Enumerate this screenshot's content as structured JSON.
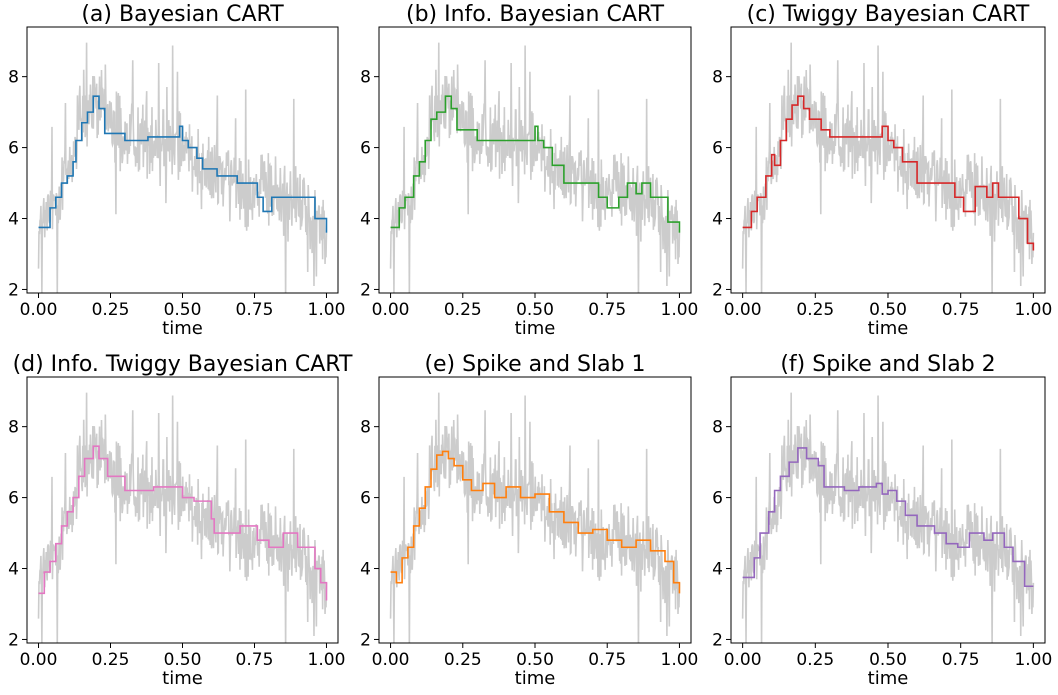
{
  "chart_data": [
    {
      "type": "line",
      "title": "(a) Bayesian CART",
      "xlabel": "time",
      "ylabel": "",
      "xlim": [
        -0.04,
        1.04
      ],
      "ylim": [
        1.9,
        9.4
      ],
      "xticks": [
        "0.00",
        "0.25",
        "0.50",
        "0.75",
        "1.00"
      ],
      "yticks": [
        "2",
        "4",
        "6",
        "8"
      ],
      "grid": false,
      "color": "#1f77b4",
      "fit": {
        "x": [
          0.0,
          0.03,
          0.04,
          0.06,
          0.08,
          0.1,
          0.12,
          0.13,
          0.15,
          0.17,
          0.19,
          0.21,
          0.23,
          0.3,
          0.38,
          0.47,
          0.49,
          0.5,
          0.52,
          0.55,
          0.57,
          0.62,
          0.69,
          0.76,
          0.78,
          0.81,
          0.92,
          0.96,
          1.0
        ],
        "y": [
          3.75,
          3.75,
          4.3,
          4.6,
          5.0,
          5.2,
          5.6,
          6.2,
          6.7,
          7.0,
          7.45,
          7.1,
          6.4,
          6.2,
          6.3,
          6.3,
          6.6,
          6.2,
          6.0,
          5.7,
          5.4,
          5.2,
          5.0,
          4.6,
          4.2,
          4.6,
          4.6,
          4.0,
          3.6
        ]
      }
    },
    {
      "type": "line",
      "title": "(b) Info. Bayesian CART",
      "xlabel": "time",
      "ylabel": "",
      "xlim": [
        -0.04,
        1.04
      ],
      "ylim": [
        1.9,
        9.4
      ],
      "xticks": [
        "0.00",
        "0.25",
        "0.50",
        "0.75",
        "1.00"
      ],
      "yticks": [
        "2",
        "4",
        "6",
        "8"
      ],
      "grid": false,
      "color": "#2ca02c",
      "fit": {
        "x": [
          0.0,
          0.03,
          0.05,
          0.08,
          0.1,
          0.12,
          0.14,
          0.16,
          0.19,
          0.21,
          0.23,
          0.3,
          0.45,
          0.5,
          0.51,
          0.53,
          0.56,
          0.6,
          0.66,
          0.72,
          0.75,
          0.79,
          0.82,
          0.85,
          0.87,
          0.9,
          0.96,
          1.0
        ],
        "y": [
          3.75,
          4.3,
          4.6,
          5.2,
          5.6,
          6.2,
          6.8,
          7.0,
          7.45,
          7.1,
          6.5,
          6.2,
          6.2,
          6.6,
          6.2,
          6.0,
          5.5,
          5.0,
          5.0,
          4.6,
          4.3,
          4.6,
          5.0,
          4.7,
          5.0,
          4.6,
          3.9,
          3.6
        ]
      }
    },
    {
      "type": "line",
      "title": "(c) Twiggy Bayesian CART",
      "xlabel": "time",
      "ylabel": "",
      "xlim": [
        -0.04,
        1.04
      ],
      "ylim": [
        1.9,
        9.4
      ],
      "xticks": [
        "0.00",
        "0.25",
        "0.50",
        "0.75",
        "1.00"
      ],
      "yticks": [
        "2",
        "4",
        "6",
        "8"
      ],
      "grid": false,
      "color": "#d62728",
      "fit": {
        "x": [
          0.0,
          0.03,
          0.05,
          0.08,
          0.1,
          0.11,
          0.13,
          0.15,
          0.17,
          0.19,
          0.21,
          0.23,
          0.27,
          0.3,
          0.45,
          0.48,
          0.5,
          0.52,
          0.55,
          0.6,
          0.67,
          0.73,
          0.76,
          0.8,
          0.84,
          0.86,
          0.88,
          0.95,
          0.98,
          1.0
        ],
        "y": [
          3.75,
          4.2,
          4.6,
          5.2,
          5.8,
          5.5,
          6.2,
          6.8,
          7.2,
          7.45,
          7.1,
          6.8,
          6.5,
          6.3,
          6.3,
          6.6,
          6.2,
          6.0,
          5.6,
          5.0,
          5.0,
          4.6,
          4.2,
          4.9,
          4.6,
          5.0,
          4.6,
          4.0,
          3.3,
          3.1
        ]
      }
    },
    {
      "type": "line",
      "title": "(d) Info. Twiggy Bayesian CART",
      "xlabel": "time",
      "ylabel": "",
      "xlim": [
        -0.04,
        1.04
      ],
      "ylim": [
        1.9,
        9.4
      ],
      "xticks": [
        "0.00",
        "0.25",
        "0.50",
        "0.75",
        "1.00"
      ],
      "yticks": [
        "2",
        "4",
        "6",
        "8"
      ],
      "grid": false,
      "color": "#e377c2",
      "fit": {
        "x": [
          0.0,
          0.02,
          0.04,
          0.06,
          0.08,
          0.1,
          0.12,
          0.14,
          0.16,
          0.19,
          0.21,
          0.24,
          0.3,
          0.4,
          0.5,
          0.54,
          0.6,
          0.61,
          0.7,
          0.76,
          0.8,
          0.85,
          0.9,
          0.96,
          0.98,
          1.0
        ],
        "y": [
          3.3,
          3.9,
          4.2,
          4.7,
          5.2,
          5.6,
          6.0,
          6.6,
          7.1,
          7.45,
          7.1,
          6.6,
          6.2,
          6.3,
          6.0,
          5.9,
          5.4,
          5.0,
          5.2,
          4.8,
          4.6,
          5.0,
          4.6,
          4.0,
          3.6,
          3.1
        ]
      }
    },
    {
      "type": "line",
      "title": "(e) Spike and Slab 1",
      "xlabel": "time",
      "ylabel": "",
      "xlim": [
        -0.04,
        1.04
      ],
      "ylim": [
        1.9,
        9.4
      ],
      "xticks": [
        "0.00",
        "0.25",
        "0.50",
        "0.75",
        "1.00"
      ],
      "yticks": [
        "2",
        "4",
        "6",
        "8"
      ],
      "grid": false,
      "color": "#ff7f0e",
      "fit": {
        "x": [
          0.0,
          0.02,
          0.04,
          0.06,
          0.08,
          0.1,
          0.12,
          0.14,
          0.16,
          0.18,
          0.2,
          0.22,
          0.25,
          0.28,
          0.32,
          0.36,
          0.4,
          0.45,
          0.5,
          0.55,
          0.6,
          0.65,
          0.7,
          0.75,
          0.8,
          0.85,
          0.9,
          0.95,
          0.98,
          1.0
        ],
        "y": [
          3.9,
          3.6,
          4.3,
          4.6,
          5.2,
          5.7,
          6.3,
          6.8,
          7.2,
          7.3,
          7.1,
          6.9,
          6.5,
          6.2,
          6.4,
          6.0,
          6.3,
          6.0,
          6.1,
          5.6,
          5.3,
          5.0,
          5.1,
          4.8,
          4.6,
          4.8,
          4.5,
          4.2,
          3.6,
          3.3
        ]
      }
    },
    {
      "type": "line",
      "title": "(f) Spike and Slab 2",
      "xlabel": "time",
      "ylabel": "",
      "xlim": [
        -0.04,
        1.04
      ],
      "ylim": [
        1.9,
        9.4
      ],
      "xticks": [
        "0.00",
        "0.25",
        "0.50",
        "0.75",
        "1.00"
      ],
      "yticks": [
        "2",
        "4",
        "6",
        "8"
      ],
      "grid": false,
      "color": "#9467bd",
      "fit": {
        "x": [
          0.0,
          0.04,
          0.06,
          0.09,
          0.11,
          0.13,
          0.16,
          0.19,
          0.22,
          0.26,
          0.28,
          0.35,
          0.4,
          0.46,
          0.48,
          0.5,
          0.53,
          0.56,
          0.6,
          0.66,
          0.7,
          0.74,
          0.78,
          0.83,
          0.86,
          0.9,
          0.93,
          0.97,
          1.0
        ],
        "y": [
          3.75,
          4.3,
          5.0,
          5.6,
          6.2,
          6.6,
          7.0,
          7.4,
          7.1,
          6.9,
          6.3,
          6.2,
          6.3,
          6.4,
          6.1,
          6.2,
          5.9,
          5.5,
          5.2,
          5.0,
          4.7,
          4.6,
          5.0,
          4.8,
          5.0,
          4.6,
          4.2,
          3.5,
          3.5
        ]
      }
    }
  ],
  "colors": {
    "raw_series": "#cccccc"
  }
}
